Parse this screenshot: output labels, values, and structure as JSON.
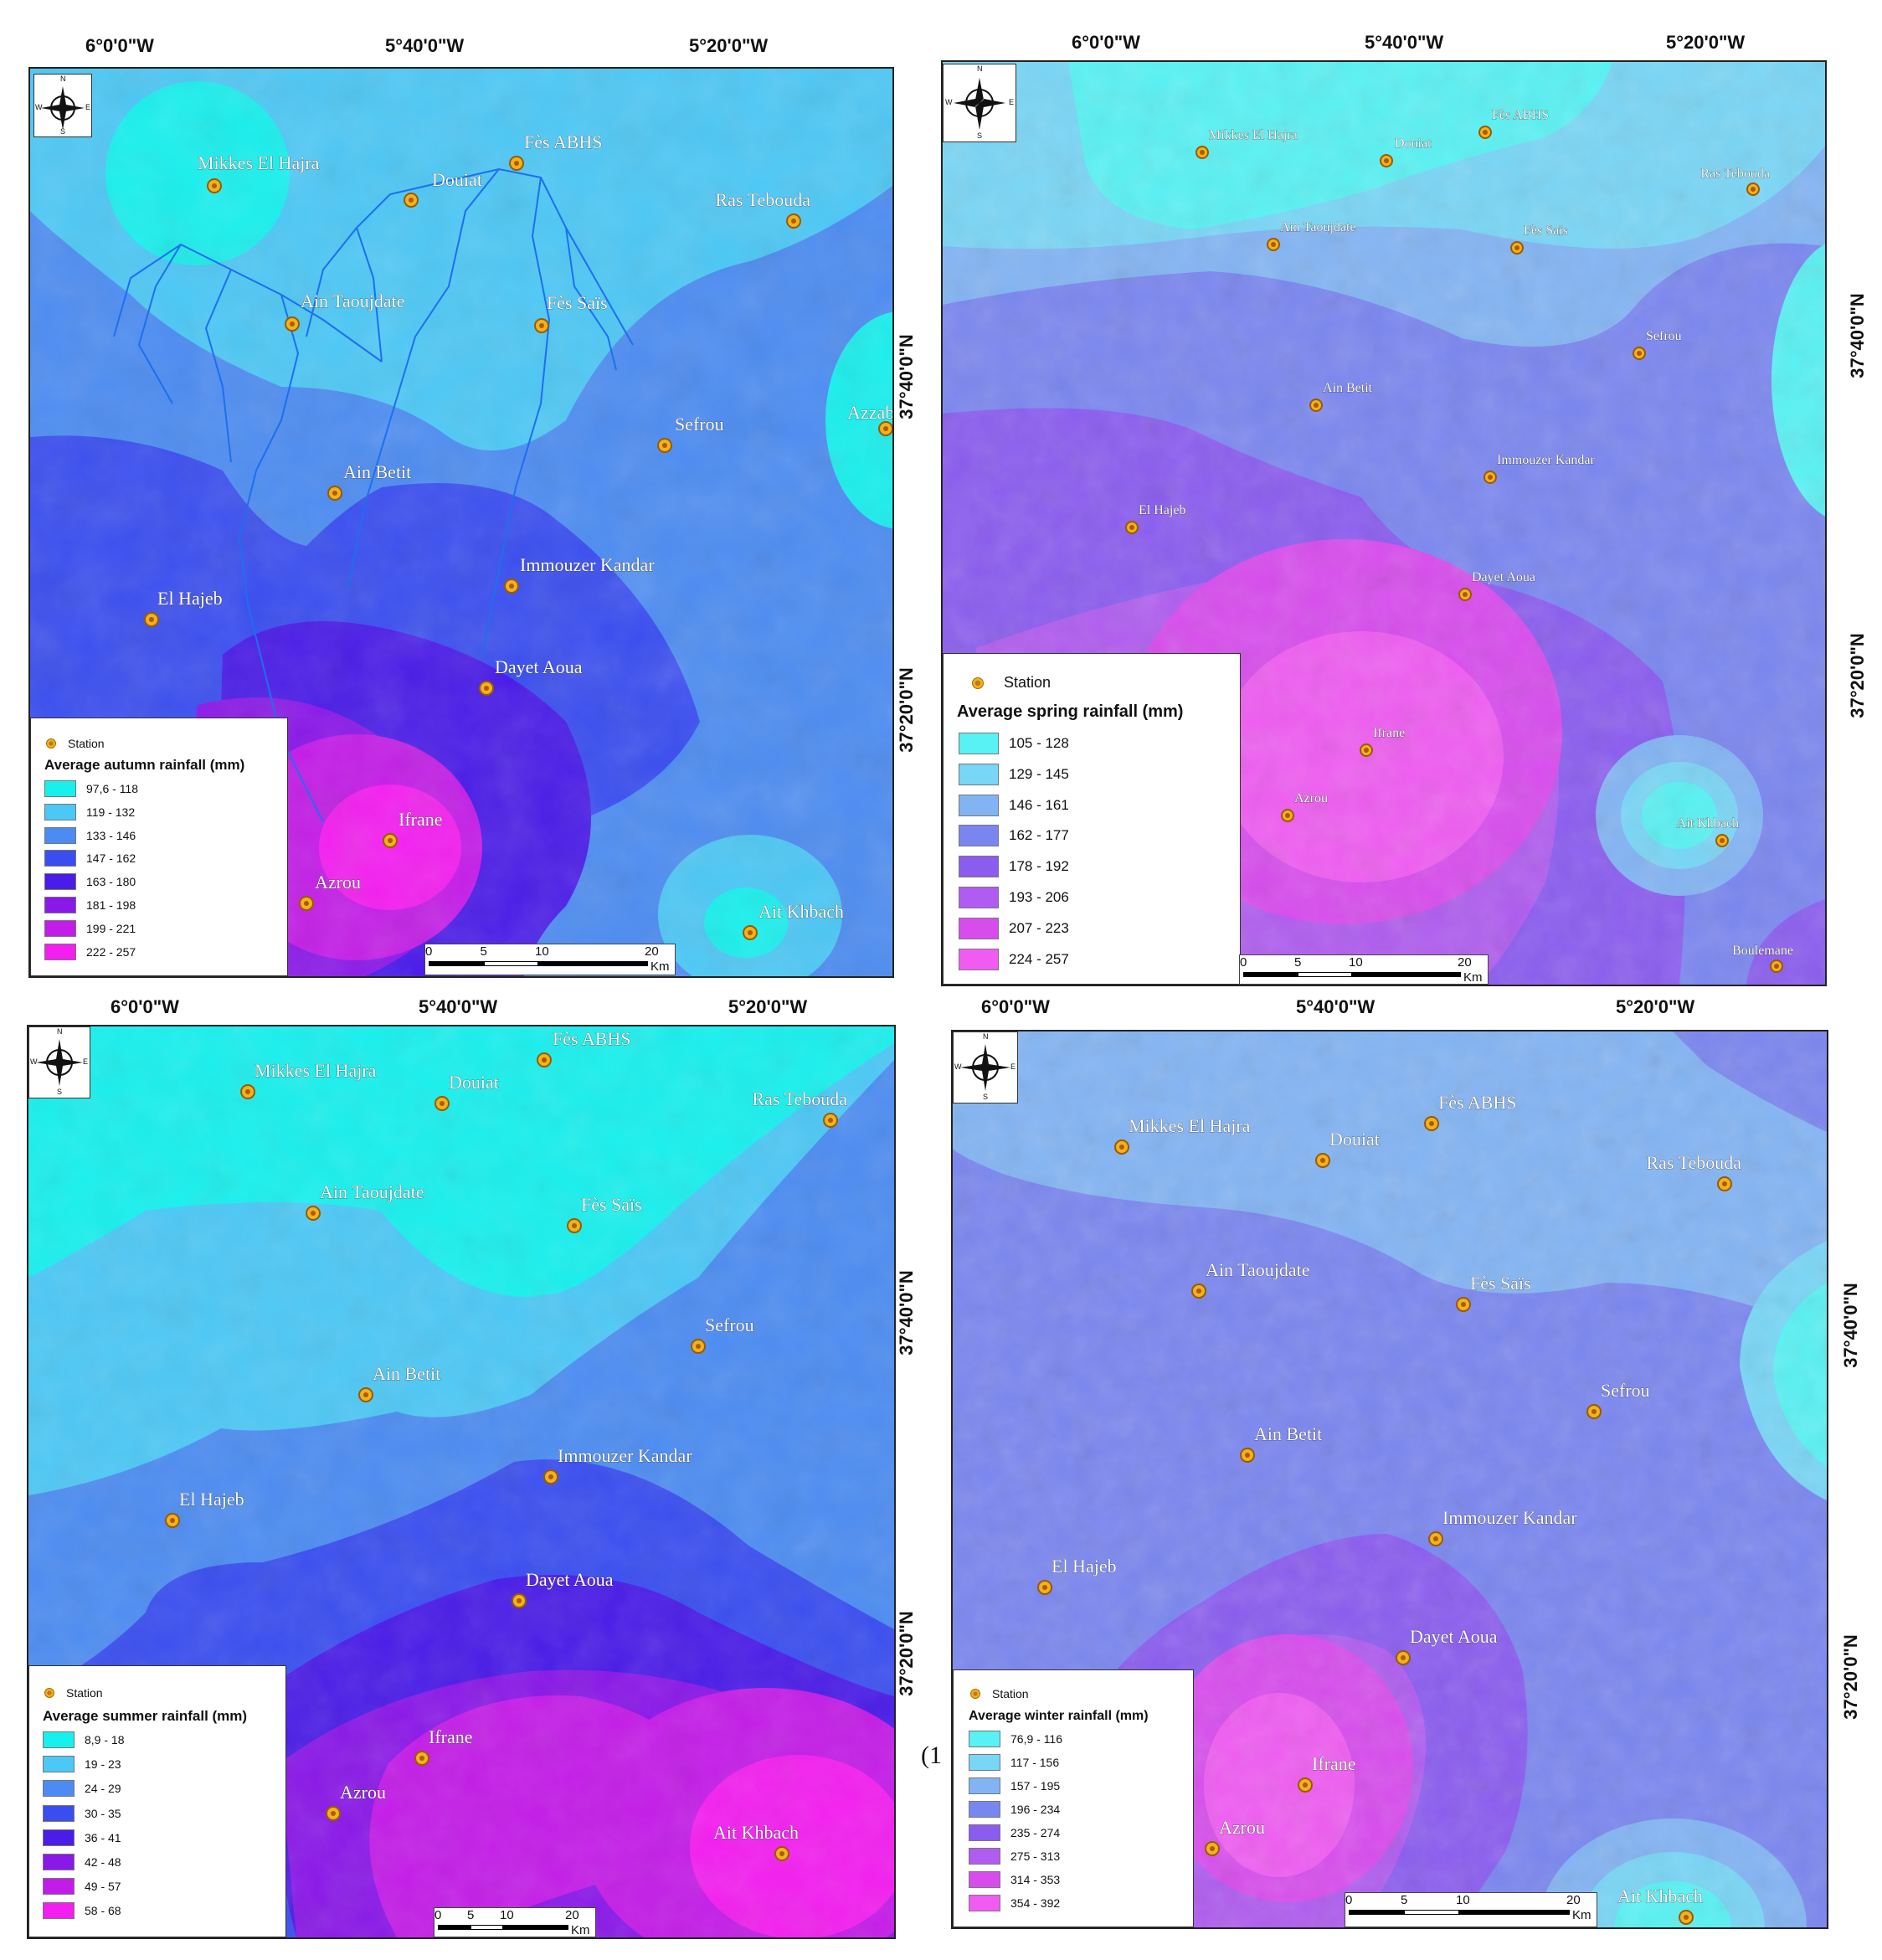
{
  "colors": {
    "relief_tint": "#6a7fb0",
    "station_fill": "#f2b21c"
  },
  "panels": [
    {
      "id": "autumn",
      "lon_labels": [
        "6°0'0\"W",
        "5°40'0\"W",
        "5°20'0\"W"
      ],
      "lat_labels": [
        "37°40'0\"N",
        "37°20'0\"N"
      ],
      "legend": {
        "station_label": "Station",
        "title": "Average autumn rainfall (mm)",
        "classes": [
          {
            "label": "97,6 - 118",
            "color": "#18f0ee"
          },
          {
            "label": "119 - 132",
            "color": "#4cc8f6"
          },
          {
            "label": "133 - 146",
            "color": "#4c8cf2"
          },
          {
            "label": "147 - 162",
            "color": "#3a4ef0"
          },
          {
            "label": "163 - 180",
            "color": "#4a1ce8"
          },
          {
            "label": "181 - 198",
            "color": "#8a18e8"
          },
          {
            "label": "199 - 221",
            "color": "#c41ce8"
          },
          {
            "label": "222 - 257",
            "color": "#f41ef0"
          }
        ]
      },
      "scale": {
        "ticks": [
          "0",
          "5",
          "10",
          "20"
        ],
        "unit": "Km"
      },
      "stations": [
        "Mikkes El Hajra",
        "Douiat",
        "Fès ABHS",
        "Ras Tebouda",
        "Ain Taoujdate",
        "Fès Saïs",
        "Azzaba",
        "Sefrou",
        "Ain Betit",
        "Immouzer Kandar",
        "El Hajeb",
        "Dayet Aoua",
        "Ifrane",
        "Azrou",
        "Ait Khbach"
      ]
    },
    {
      "id": "spring",
      "lon_labels": [
        "6°0'0\"W",
        "5°40'0\"W",
        "5°20'0\"W"
      ],
      "lat_labels": [
        "37°40'0\"N",
        "37°20'0\"N"
      ],
      "legend": {
        "station_label": "Station",
        "title": "Average spring rainfall (mm)",
        "classes": [
          {
            "label": "105 - 128",
            "color": "#58f2f4"
          },
          {
            "label": "129 - 145",
            "color": "#78d6f6"
          },
          {
            "label": "146 - 161",
            "color": "#82b4f4"
          },
          {
            "label": "162 - 177",
            "color": "#7a86f0"
          },
          {
            "label": "178 - 192",
            "color": "#8a5cf0"
          },
          {
            "label": "193 - 206",
            "color": "#b05cf0"
          },
          {
            "label": "207 - 223",
            "color": "#d84cee"
          },
          {
            "label": "224 - 257",
            "color": "#f05cf2"
          }
        ]
      },
      "scale": {
        "ticks": [
          "0",
          "5",
          "10",
          "20"
        ],
        "unit": "Km"
      },
      "stations": [
        "Mikkes El Hajra",
        "Douiat",
        "Fès ABHS",
        "Ras Tebouda",
        "Ain Taoujdate",
        "Fès Saïs",
        "Sefrou",
        "Ain Betit",
        "Immouzer Kandar",
        "El Hajeb",
        "Dayet Aoua",
        "Ifrane",
        "Azrou",
        "Ait Khbach",
        "Boulemane"
      ]
    },
    {
      "id": "summer",
      "lon_labels": [
        "6°0'0\"W",
        "5°40'0\"W",
        "5°20'0\"W"
      ],
      "lat_labels": [
        "37°40'0\"N",
        "37°20'0\"N"
      ],
      "legend": {
        "station_label": "Station",
        "title": "Average summer rainfall (mm)",
        "classes": [
          {
            "label": "8,9 - 18",
            "color": "#18f0ee"
          },
          {
            "label": "19 - 23",
            "color": "#4cc8f6"
          },
          {
            "label": "24 - 29",
            "color": "#4c8cf2"
          },
          {
            "label": "30 - 35",
            "color": "#3a4ef0"
          },
          {
            "label": "36 - 41",
            "color": "#4a1ce8"
          },
          {
            "label": "42 - 48",
            "color": "#8a18e8"
          },
          {
            "label": "49 - 57",
            "color": "#c41ce8"
          },
          {
            "label": "58 - 68",
            "color": "#f41ef0"
          }
        ]
      },
      "scale": {
        "ticks": [
          "0",
          "5",
          "10",
          "20"
        ],
        "unit": "Km"
      },
      "stations": [
        "Fès ABHS",
        "Mikkes El Hajra",
        "Douiat",
        "Ras Tebouda",
        "Ain Taoujdate",
        "Fès Saïs",
        "Sefrou",
        "Ain Betit",
        "Immouzer Kandar",
        "El Hajeb",
        "Dayet Aoua",
        "Ifrane",
        "Azrou",
        "Ait Khbach"
      ]
    },
    {
      "id": "winter",
      "lon_labels": [
        "6°0'0\"W",
        "5°40'0\"W",
        "5°20'0\"W"
      ],
      "lat_labels": [
        "37°40'0\"N",
        "37°20'0\"N"
      ],
      "legend": {
        "station_label": "Station",
        "title": "Average winter rainfall (mm)",
        "classes": [
          {
            "label": "76,9 - 116",
            "color": "#58f2f4"
          },
          {
            "label": "117 - 156",
            "color": "#78d6f6"
          },
          {
            "label": "157 - 195",
            "color": "#82b4f4"
          },
          {
            "label": "196 - 234",
            "color": "#7a86f0"
          },
          {
            "label": "235 - 274",
            "color": "#8a5cf0"
          },
          {
            "label": "275 - 313",
            "color": "#b05cf0"
          },
          {
            "label": "314 - 353",
            "color": "#d84cee"
          },
          {
            "label": "354 - 392",
            "color": "#f05cf2"
          }
        ]
      },
      "scale": {
        "ticks": [
          "0",
          "5",
          "10",
          "20"
        ],
        "unit": "Km"
      },
      "stations": [
        "Fès ABHS",
        "Mikkes El Hajra",
        "Douiat",
        "Ras Tebouda",
        "Ain Taoujdate",
        "Fès Saïs",
        "Sefrou",
        "Ain Betit",
        "Immouzer Kandar",
        "El Hajeb",
        "Dayet Aoua",
        "Ifrane",
        "Azrou",
        "Ait Khbach"
      ]
    }
  ],
  "compass_letters": [
    "N",
    "S",
    "W",
    "E"
  ],
  "side_mark": "(1"
}
